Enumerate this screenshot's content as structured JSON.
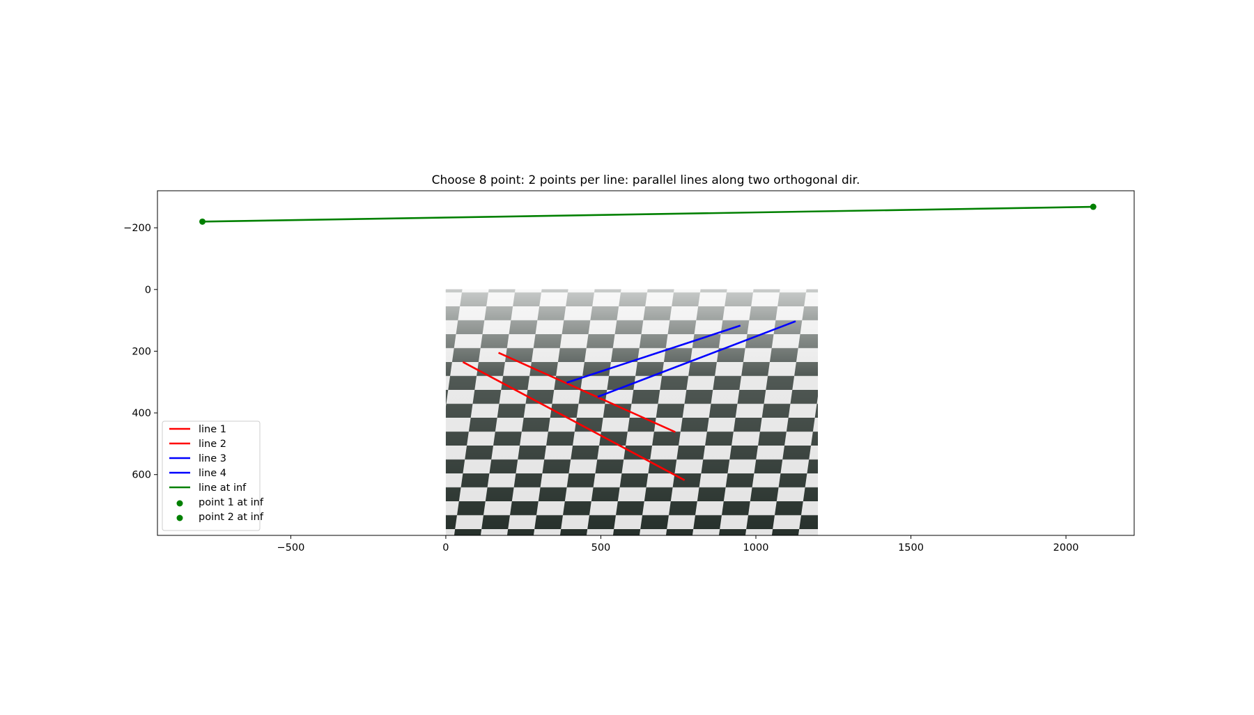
{
  "chart_data": {
    "type": "line",
    "title": "Choose 8 point: 2 points per line: parallel lines along two orthogonal dir.",
    "xlabel": "",
    "ylabel": "",
    "xlim": [
      -930,
      2220
    ],
    "ylim": [
      797,
      -320
    ],
    "y_inverted": true,
    "grid": false,
    "x_ticks": [
      {
        "value": -500,
        "label": "−500"
      },
      {
        "value": 0,
        "label": "0"
      },
      {
        "value": 500,
        "label": "500"
      },
      {
        "value": 1000,
        "label": "1000"
      },
      {
        "value": 1500,
        "label": "1500"
      },
      {
        "value": 2000,
        "label": "2000"
      }
    ],
    "y_ticks": [
      {
        "value": -200,
        "label": "−200"
      },
      {
        "value": 0,
        "label": "0"
      },
      {
        "value": 200,
        "label": "200"
      },
      {
        "value": 400,
        "label": "400"
      },
      {
        "value": 600,
        "label": "600"
      }
    ],
    "background_image": {
      "description_name": "checkerboard-marble-floor-photo",
      "extent_x": [
        0,
        1200
      ],
      "extent_y": [
        0,
        797
      ]
    },
    "series": [
      {
        "name": "line 1",
        "kind": "line",
        "color": "#ff0000",
        "x": [
          55,
          770
        ],
        "y": [
          235,
          618
        ]
      },
      {
        "name": "line 2",
        "kind": "line",
        "color": "#ff0000",
        "x": [
          170,
          740
        ],
        "y": [
          205,
          462
        ]
      },
      {
        "name": "line 3",
        "kind": "line",
        "color": "#0000ff",
        "x": [
          390,
          950
        ],
        "y": [
          302,
          117
        ]
      },
      {
        "name": "line 4",
        "kind": "line",
        "color": "#0000ff",
        "x": [
          490,
          1128
        ],
        "y": [
          348,
          103
        ]
      },
      {
        "name": "line at  inf",
        "kind": "line",
        "color": "#008000",
        "x": [
          -785,
          2088
        ],
        "y": [
          -220,
          -268
        ]
      },
      {
        "name": "point 1 at inf",
        "kind": "point",
        "color": "#008000",
        "x": [
          -785
        ],
        "y": [
          -220
        ]
      },
      {
        "name": "point 2 at inf",
        "kind": "point",
        "color": "#008000",
        "x": [
          2088
        ],
        "y": [
          -268
        ]
      }
    ],
    "legend": {
      "placement": "lower-left"
    }
  }
}
